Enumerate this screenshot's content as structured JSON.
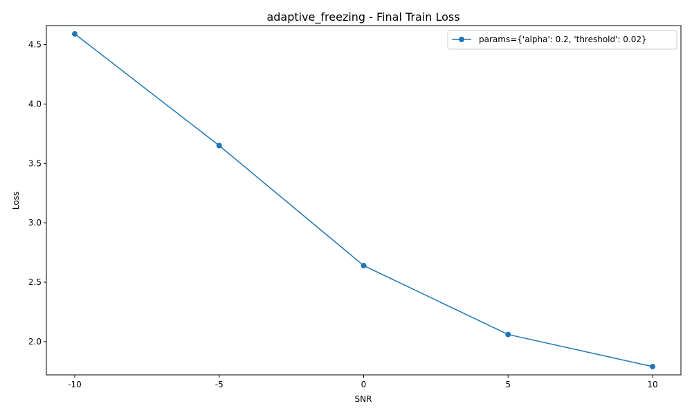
{
  "chart_data": {
    "type": "line",
    "title": "adaptive_freezing - Final Train Loss",
    "xlabel": "SNR",
    "ylabel": "Loss",
    "categories": [
      "-10",
      "-5",
      "0",
      "5",
      "10"
    ],
    "series": [
      {
        "name": "params={'alpha': 0.2, 'threshold': 0.02}",
        "values": [
          4.59,
          3.65,
          2.64,
          2.06,
          1.79
        ],
        "color": "#1f77b4"
      }
    ],
    "ylim": [
      1.72,
      4.66
    ],
    "yticks": [
      "2.0",
      "2.5",
      "3.0",
      "3.5",
      "4.0",
      "4.5"
    ],
    "grid": false,
    "legend": "top-right"
  }
}
